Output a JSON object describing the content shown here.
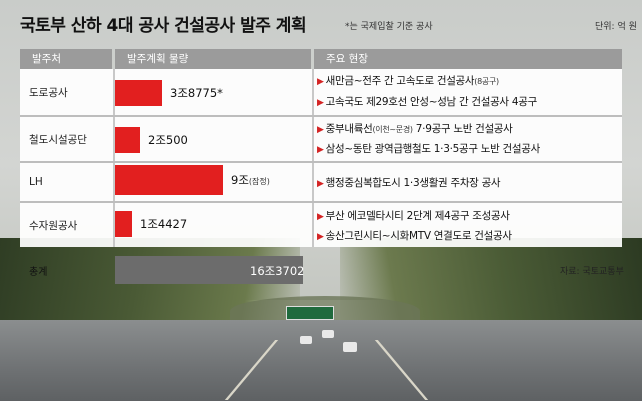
{
  "title": "국토부 산하 4대 공사 건설공사 발주 계획",
  "title_note": "*는 국제입찰 기준 공사",
  "unit": "단위: 억 원",
  "headers": {
    "org": "발주처",
    "amount": "발주계획 물량",
    "projects": "주요 현장"
  },
  "rows": [
    {
      "org": "도로공사",
      "amount_label": "3조8775*",
      "amount_note": "",
      "projects": [
        {
          "text": "새만금~전주 간 고속도로 건설공사",
          "note": "(8공구)"
        },
        {
          "text": "고속국도 제29호선 안성~성남 간 건설공사 4공구",
          "note": ""
        }
      ]
    },
    {
      "org": "철도시설공단",
      "amount_label": "2조500",
      "amount_note": "",
      "projects": [
        {
          "text": "중부내륙선",
          "note": "(이천~문경)",
          "tail": " 7·9공구 노반 건설공사"
        },
        {
          "text": "삼성~동탄 광역급행철도 1·3·5공구 노반 건설공사",
          "note": ""
        }
      ]
    },
    {
      "org": "LH",
      "amount_label": "9조",
      "amount_note": "(잠정)",
      "projects": [
        {
          "text": "행정중심복합도시 1·3생활권 주차장 공사",
          "note": ""
        }
      ]
    },
    {
      "org": "수자원공사",
      "amount_label": "1조4427",
      "amount_note": "",
      "projects": [
        {
          "text": "부산 에코델타시티 2단계 제4공구 조성공사",
          "note": ""
        },
        {
          "text": "송산그린시티~시화MTV 연결도로 건설공사",
          "note": ""
        }
      ]
    }
  ],
  "total": {
    "label": "총계",
    "amount_label": "16조3702"
  },
  "source": "자료: 국토교통부",
  "chart_data": {
    "type": "bar",
    "title": "국토부 산하 4대 공사 건설공사 발주 계획",
    "unit": "억 원",
    "categories": [
      "도로공사",
      "철도시설공단",
      "LH",
      "수자원공사"
    ],
    "values": [
      38775,
      20500,
      90000,
      14427
    ],
    "value_labels": [
      "3조8775*",
      "2조500",
      "9조(잠정)",
      "1조4427"
    ],
    "total": 163702,
    "bar_color": "#e21f1f"
  }
}
